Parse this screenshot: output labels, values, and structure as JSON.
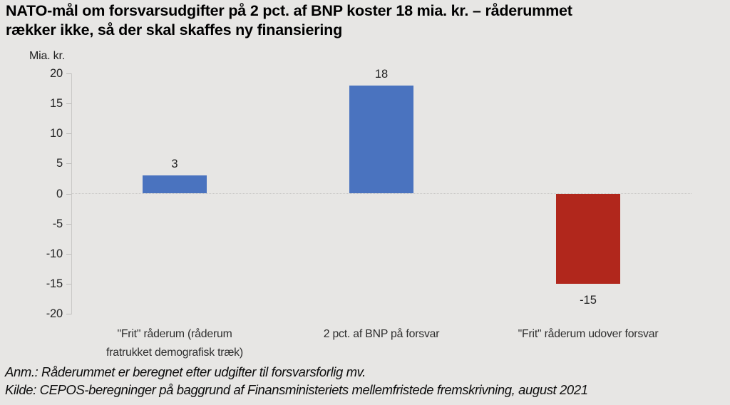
{
  "page": {
    "background": "#E7E6E4"
  },
  "header": {
    "title": "NATO-mål om forsvarsudgifter på 2 pct. af BNP koster 18 mia. kr. – råderummet\nrækker ikke, så der skal skaffes ny finansiering"
  },
  "chart_data": {
    "type": "bar",
    "title": "NATO-mål om forsvarsudgifter på 2 pct. af BNP koster 18 mia. kr. – råderummet rækker ikke, så der skal skaffes ny finansiering",
    "unit_label": "Mia. kr.",
    "categories": [
      "\"Frit\" råderum (råderum\nfratrukket demografisk træk)",
      "2 pct. af BNP på forsvar",
      "\"Frit\" råderum udover forsvar"
    ],
    "values": [
      3,
      18,
      -15
    ],
    "value_labels": [
      "3",
      "18",
      "-15"
    ],
    "bar_colors": [
      "#4A73BF",
      "#4A73BF",
      "#B1271C"
    ],
    "positive_color": "#4A73BF",
    "negative_color": "#B1271C",
    "y_ticks": [
      20,
      15,
      10,
      5,
      0,
      -5,
      -10,
      -15,
      -20
    ],
    "ylim": [
      -20,
      20
    ],
    "grid": "zero-baseline-only",
    "legend": "none"
  },
  "footer": {
    "note": "Anm.: Råderummet er beregnet efter udgifter til forsvarsforlig mv.",
    "source": "Kilde: CEPOS-beregninger på baggrund af Finansministeriets mellemfristede fremskrivning, august 2021"
  }
}
